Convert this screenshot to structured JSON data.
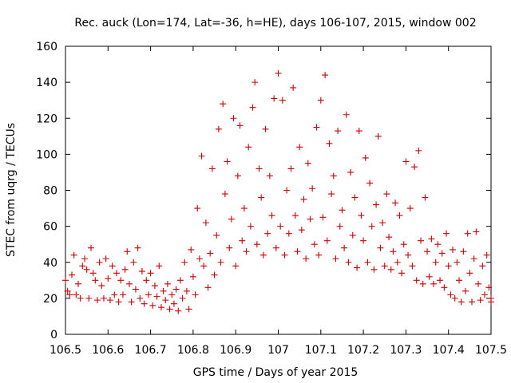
{
  "chart_data": {
    "type": "scatter",
    "title": "Rec. auck (Lon=174, Lat=-36, h=HE), days 106-107, 2015, window 002",
    "xlabel": "GPS time / Days of year 2015",
    "ylabel": "STEC from uqrg / TECUs",
    "xlim": [
      106.5,
      107.5
    ],
    "ylim": [
      0,
      160
    ],
    "x_ticks": [
      "106.5",
      "106.6",
      "106.7",
      "106.8",
      "106.9",
      "107",
      "107.1",
      "107.2",
      "107.3",
      "107.4",
      "107.5"
    ],
    "y_ticks": [
      "0",
      "20",
      "40",
      "60",
      "80",
      "100",
      "120",
      "140",
      "160"
    ],
    "marker": "+",
    "grid": false,
    "color": "#cc0000",
    "points": [
      [
        106.5,
        30
      ],
      [
        106.505,
        24
      ],
      [
        106.51,
        22
      ],
      [
        106.515,
        33
      ],
      [
        106.52,
        44
      ],
      [
        106.525,
        22
      ],
      [
        106.53,
        28
      ],
      [
        106.535,
        20
      ],
      [
        106.54,
        38
      ],
      [
        106.545,
        42
      ],
      [
        106.55,
        36
      ],
      [
        106.555,
        20
      ],
      [
        106.56,
        48
      ],
      [
        106.565,
        34
      ],
      [
        106.57,
        30
      ],
      [
        106.575,
        19
      ],
      [
        106.58,
        40
      ],
      [
        106.585,
        27
      ],
      [
        106.59,
        20
      ],
      [
        106.595,
        42
      ],
      [
        106.6,
        31
      ],
      [
        106.605,
        19
      ],
      [
        106.61,
        38
      ],
      [
        106.615,
        22
      ],
      [
        106.62,
        34
      ],
      [
        106.625,
        18
      ],
      [
        106.63,
        30
      ],
      [
        106.635,
        22
      ],
      [
        106.64,
        36
      ],
      [
        106.645,
        46
      ],
      [
        106.65,
        28
      ],
      [
        106.655,
        18
      ],
      [
        106.66,
        40
      ],
      [
        106.665,
        25
      ],
      [
        106.67,
        48
      ],
      [
        106.675,
        20
      ],
      [
        106.68,
        35
      ],
      [
        106.685,
        17
      ],
      [
        106.69,
        30
      ],
      [
        106.695,
        22
      ],
      [
        106.7,
        34
      ],
      [
        106.705,
        16
      ],
      [
        106.71,
        27
      ],
      [
        106.715,
        21
      ],
      [
        106.72,
        38
      ],
      [
        106.725,
        15
      ],
      [
        106.73,
        24
      ],
      [
        106.735,
        19
      ],
      [
        106.74,
        28
      ],
      [
        106.745,
        14
      ],
      [
        106.75,
        22
      ],
      [
        106.755,
        17
      ],
      [
        106.76,
        25
      ],
      [
        106.765,
        13
      ],
      [
        106.77,
        30
      ],
      [
        106.775,
        20
      ],
      [
        106.78,
        40
      ],
      [
        106.785,
        24
      ],
      [
        106.79,
        14
      ],
      [
        106.795,
        47
      ],
      [
        106.8,
        32
      ],
      [
        106.805,
        22
      ],
      [
        106.81,
        70
      ],
      [
        106.815,
        42
      ],
      [
        106.82,
        99
      ],
      [
        106.825,
        38
      ],
      [
        106.83,
        62
      ],
      [
        106.835,
        26
      ],
      [
        106.84,
        45
      ],
      [
        106.845,
        92
      ],
      [
        106.85,
        33
      ],
      [
        106.855,
        55
      ],
      [
        106.86,
        114
      ],
      [
        106.865,
        40
      ],
      [
        106.87,
        128
      ],
      [
        106.875,
        78
      ],
      [
        106.88,
        96
      ],
      [
        106.885,
        48
      ],
      [
        106.89,
        64
      ],
      [
        106.895,
        120
      ],
      [
        106.9,
        38
      ],
      [
        106.905,
        88
      ],
      [
        106.91,
        116
      ],
      [
        106.915,
        52
      ],
      [
        106.92,
        70
      ],
      [
        106.925,
        46
      ],
      [
        106.93,
        104
      ],
      [
        106.935,
        60
      ],
      [
        106.94,
        126
      ],
      [
        106.945,
        140
      ],
      [
        106.95,
        50
      ],
      [
        106.955,
        92
      ],
      [
        106.96,
        76
      ],
      [
        106.965,
        44
      ],
      [
        106.97,
        114
      ],
      [
        106.975,
        56
      ],
      [
        106.98,
        88
      ],
      [
        106.985,
        66
      ],
      [
        106.99,
        131
      ],
      [
        106.995,
        48
      ],
      [
        107.0,
        145
      ],
      [
        107.005,
        60
      ],
      [
        107.01,
        130
      ],
      [
        107.015,
        44
      ],
      [
        107.02,
        80
      ],
      [
        107.025,
        56
      ],
      [
        107.03,
        92
      ],
      [
        107.035,
        137
      ],
      [
        107.04,
        66
      ],
      [
        107.045,
        46
      ],
      [
        107.05,
        104
      ],
      [
        107.055,
        58
      ],
      [
        107.06,
        75
      ],
      [
        107.065,
        42
      ],
      [
        107.07,
        95
      ],
      [
        107.075,
        64
      ],
      [
        107.08,
        81
      ],
      [
        107.085,
        50
      ],
      [
        107.09,
        115
      ],
      [
        107.095,
        44
      ],
      [
        107.1,
        130
      ],
      [
        107.105,
        65
      ],
      [
        107.11,
        144
      ],
      [
        107.115,
        52
      ],
      [
        107.12,
        106
      ],
      [
        107.125,
        78
      ],
      [
        107.13,
        88
      ],
      [
        107.135,
        42
      ],
      [
        107.14,
        113
      ],
      [
        107.145,
        60
      ],
      [
        107.15,
        69
      ],
      [
        107.155,
        48
      ],
      [
        107.16,
        122
      ],
      [
        107.165,
        40
      ],
      [
        107.17,
        90
      ],
      [
        107.175,
        55
      ],
      [
        107.18,
        76
      ],
      [
        107.185,
        37
      ],
      [
        107.19,
        113
      ],
      [
        107.195,
        66
      ],
      [
        107.2,
        52
      ],
      [
        107.205,
        98
      ],
      [
        107.21,
        40
      ],
      [
        107.215,
        84
      ],
      [
        107.22,
        60
      ],
      [
        107.225,
        36
      ],
      [
        107.23,
        72
      ],
      [
        107.235,
        110
      ],
      [
        107.24,
        48
      ],
      [
        107.245,
        62
      ],
      [
        107.25,
        38
      ],
      [
        107.255,
        78
      ],
      [
        107.26,
        54
      ],
      [
        107.265,
        36
      ],
      [
        107.27,
        46
      ],
      [
        107.275,
        73
      ],
      [
        107.28,
        40
      ],
      [
        107.285,
        66
      ],
      [
        107.29,
        34
      ],
      [
        107.295,
        50
      ],
      [
        107.3,
        96
      ],
      [
        107.305,
        44
      ],
      [
        107.31,
        70
      ],
      [
        107.315,
        38
      ],
      [
        107.32,
        93
      ],
      [
        107.325,
        30
      ],
      [
        107.33,
        102
      ],
      [
        107.335,
        52
      ],
      [
        107.34,
        28
      ],
      [
        107.345,
        76
      ],
      [
        107.35,
        46
      ],
      [
        107.355,
        32
      ],
      [
        107.36,
        53
      ],
      [
        107.365,
        28
      ],
      [
        107.37,
        40
      ],
      [
        107.375,
        50
      ],
      [
        107.38,
        30
      ],
      [
        107.385,
        45
      ],
      [
        107.39,
        26
      ],
      [
        107.395,
        56
      ],
      [
        107.4,
        38
      ],
      [
        107.405,
        22
      ],
      [
        107.41,
        47
      ],
      [
        107.415,
        20
      ],
      [
        107.42,
        40
      ],
      [
        107.425,
        30
      ],
      [
        107.43,
        18
      ],
      [
        107.435,
        46
      ],
      [
        107.44,
        24
      ],
      [
        107.445,
        56
      ],
      [
        107.45,
        34
      ],
      [
        107.455,
        18
      ],
      [
        107.46,
        42
      ],
      [
        107.465,
        57
      ],
      [
        107.47,
        28
      ],
      [
        107.475,
        19
      ],
      [
        107.48,
        38
      ],
      [
        107.485,
        22
      ],
      [
        107.49,
        44
      ],
      [
        107.495,
        26
      ],
      [
        107.5,
        20
      ],
      [
        107.5,
        18
      ]
    ]
  }
}
